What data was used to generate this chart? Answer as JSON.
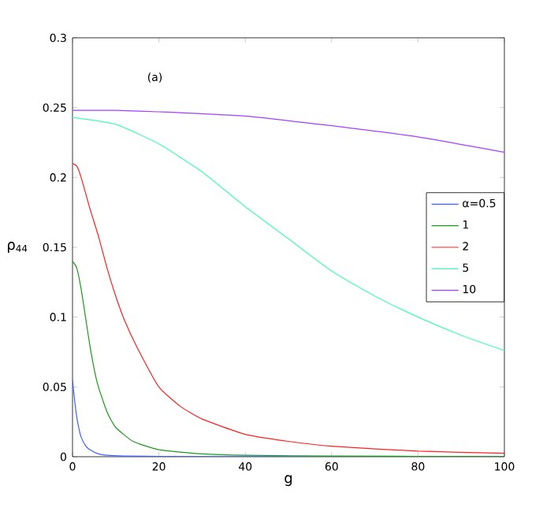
{
  "chart_data": {
    "type": "line",
    "xlabel": "g",
    "ylabel": "ρ$_{44}$",
    "annotations": [
      "(a)"
    ],
    "xlim": [
      0,
      100
    ],
    "ylim": [
      0,
      0.3
    ],
    "xticks": [
      0,
      20,
      40,
      60,
      80,
      100
    ],
    "yticks": [
      0,
      0.05,
      0.1,
      0.15,
      0.2,
      0.25,
      0.3
    ],
    "legend": "right",
    "grid": false,
    "marker": "none",
    "line_style": "solid",
    "series": [
      {
        "name": "α=0.5",
        "color": "#3f5fff",
        "x": [
          0,
          0.5,
          1,
          1.5,
          2,
          3,
          4,
          6,
          8,
          12,
          20,
          40,
          100
        ],
        "values": [
          0.055,
          0.04,
          0.028,
          0.02,
          0.014,
          0.008,
          0.005,
          0.002,
          0.001,
          0.0005,
          0.0002,
          0,
          0
        ]
      },
      {
        "name": "1",
        "color": "#1a9a1a",
        "x": [
          0,
          1,
          2,
          3,
          4,
          5,
          6,
          8,
          10,
          14,
          20,
          30,
          40,
          60,
          100
        ],
        "values": [
          0.14,
          0.135,
          0.12,
          0.1,
          0.08,
          0.063,
          0.05,
          0.032,
          0.021,
          0.011,
          0.005,
          0.002,
          0.001,
          0.0005,
          0
        ]
      },
      {
        "name": "2",
        "color": "#ff2020",
        "x": [
          0,
          1,
          2,
          4,
          6,
          8,
          10,
          12,
          15,
          20,
          25,
          30,
          40,
          50,
          60,
          80,
          100
        ],
        "values": [
          0.21,
          0.208,
          0.2,
          0.178,
          0.158,
          0.135,
          0.115,
          0.098,
          0.078,
          0.05,
          0.036,
          0.027,
          0.016,
          0.011,
          0.0075,
          0.004,
          0.0025
        ]
      },
      {
        "name": "5",
        "color": "#40ffb0",
        "x": [
          0,
          10,
          20,
          30,
          40,
          50,
          60,
          70,
          80,
          90,
          100
        ],
        "values": [
          0.243,
          0.238,
          0.224,
          0.204,
          0.179,
          0.156,
          0.133,
          0.115,
          0.1,
          0.087,
          0.076
        ]
      },
      {
        "name": "10",
        "color": "#a040ff",
        "x": [
          0,
          10,
          20,
          40,
          60,
          80,
          100
        ],
        "values": [
          0.248,
          0.248,
          0.247,
          0.244,
          0.237,
          0.229,
          0.218
        ]
      }
    ]
  }
}
